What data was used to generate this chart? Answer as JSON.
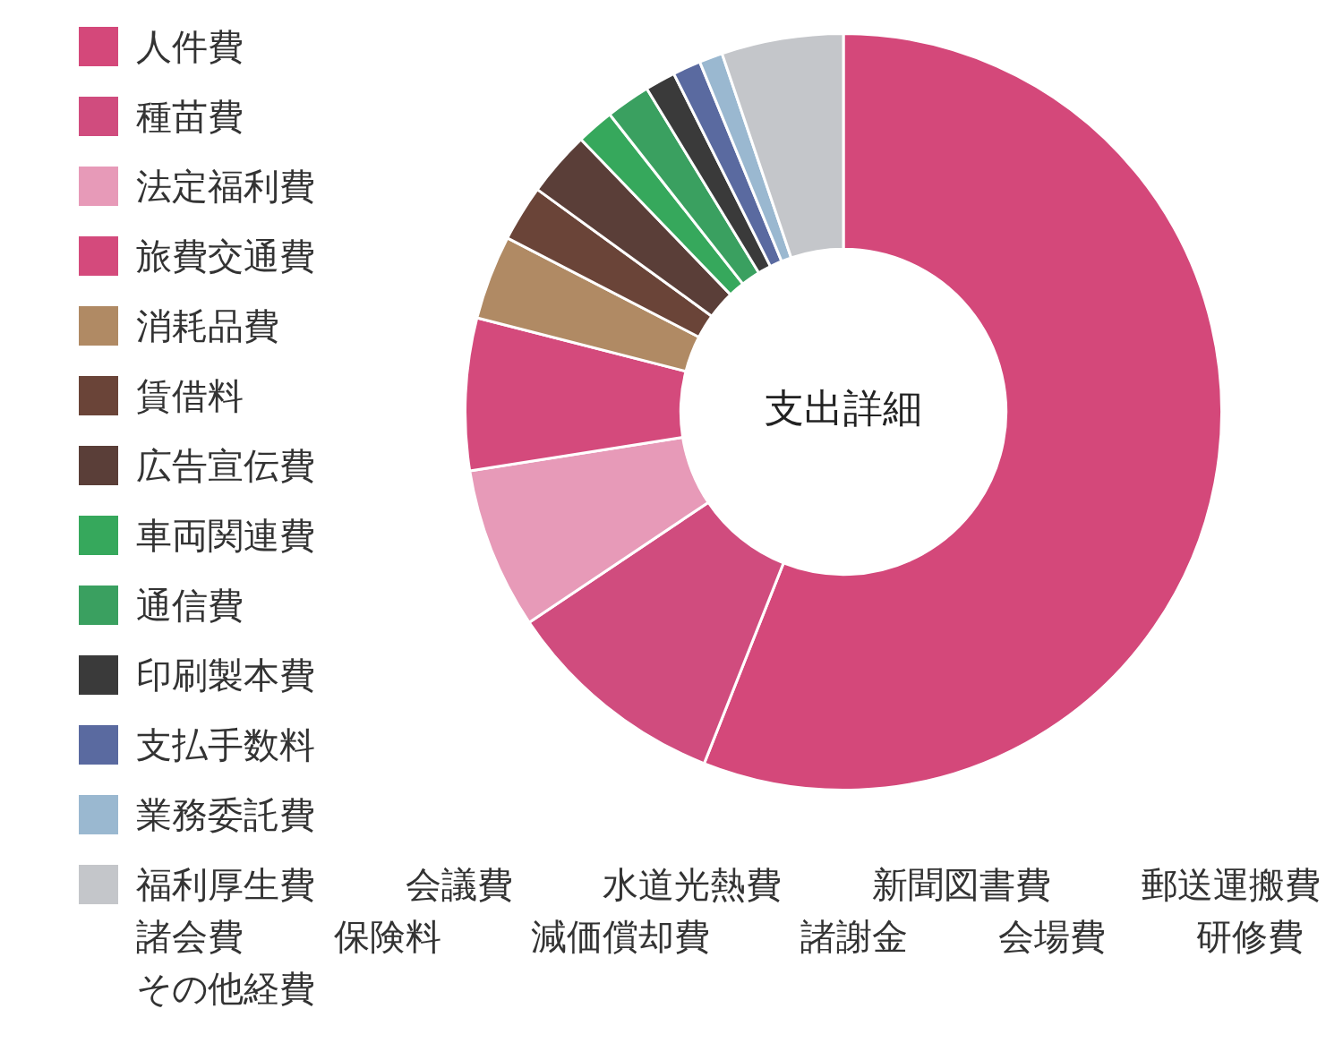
{
  "chart_data": {
    "type": "donut",
    "title": "支出詳細",
    "legend": "left",
    "categories": [
      "人件費",
      "種苗費",
      "法定福利費",
      "旅費交通費",
      "消耗品費",
      "賃借料",
      "広告宣伝費",
      "車両関連費",
      "通信費",
      "印刷製本費",
      "支払手数料",
      "業務委託費",
      "福利厚生費 会議費 水道光熱費 新聞図書費 郵送運搬費諸会費 保険料 減価償却費 諸謝金 会場費 研修費その他経費"
    ],
    "values": [
      56.0,
      9.6,
      6.9,
      6.5,
      3.6,
      2.4,
      2.8,
      1.6,
      1.9,
      1.3,
      1.2,
      1.0,
      5.2
    ],
    "colors": [
      "#d4487a",
      "#d04c7e",
      "#e79ab8",
      "#d44a7c",
      "#b08a64",
      "#6a4438",
      "#5a3e38",
      "#36a85c",
      "#3aa060",
      "#3a3a3a",
      "#5a6aa0",
      "#9ab8d0",
      "#c4c6ca"
    ]
  }
}
